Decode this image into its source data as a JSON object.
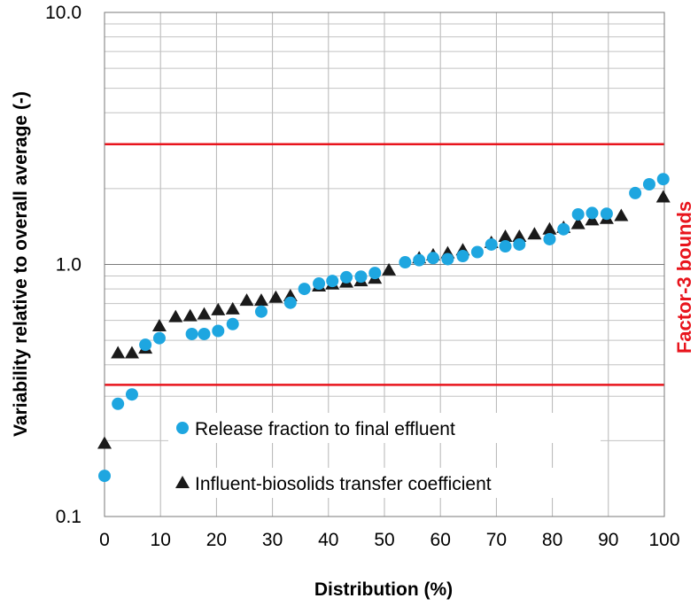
{
  "chart_data": {
    "type": "scatter",
    "xlabel": "Distribution (%)",
    "ylabel": "Variability relative to overall average (-)",
    "secondary_label": "Factor-3 bounds",
    "xlim": [
      0,
      100
    ],
    "ylim": [
      0.1,
      10
    ],
    "y_scale": "log",
    "x_ticks": [
      "0",
      "10",
      "20",
      "30",
      "40",
      "50",
      "60",
      "70",
      "80",
      "90",
      "100"
    ],
    "y_ticks": [
      "0.1",
      "1.0",
      "10.0"
    ],
    "grid": true,
    "legend_position": "bottom-center (inside plot)",
    "bounds": {
      "values": [
        0.333,
        3.0
      ],
      "color": "#e8141c"
    },
    "series": [
      {
        "name": "Release fraction to final effluent",
        "marker": "circle",
        "color": "#1ea6e0",
        "points": [
          [
            0,
            0.145
          ],
          [
            2.4,
            0.28
          ],
          [
            4.9,
            0.305
          ],
          [
            7.3,
            0.48
          ],
          [
            9.8,
            0.51
          ],
          [
            15.6,
            0.53
          ],
          [
            17.8,
            0.53
          ],
          [
            20.3,
            0.545
          ],
          [
            22.9,
            0.58
          ],
          [
            28.0,
            0.65
          ],
          [
            33.2,
            0.705
          ],
          [
            35.7,
            0.8
          ],
          [
            38.3,
            0.84
          ],
          [
            40.7,
            0.86
          ],
          [
            43.2,
            0.89
          ],
          [
            45.8,
            0.895
          ],
          [
            48.3,
            0.925
          ],
          [
            53.7,
            1.02
          ],
          [
            56.2,
            1.04
          ],
          [
            58.7,
            1.06
          ],
          [
            61.3,
            1.05
          ],
          [
            64.0,
            1.08
          ],
          [
            66.6,
            1.12
          ],
          [
            69.1,
            1.2
          ],
          [
            71.6,
            1.18
          ],
          [
            74.1,
            1.2
          ],
          [
            79.5,
            1.26
          ],
          [
            82.0,
            1.38
          ],
          [
            84.6,
            1.58
          ],
          [
            87.1,
            1.6
          ],
          [
            89.7,
            1.59
          ],
          [
            94.8,
            1.92
          ],
          [
            97.3,
            2.08
          ],
          [
            99.8,
            2.18
          ]
        ]
      },
      {
        "name": "Influent-biosolids transfer coefficient",
        "marker": "triangle",
        "color": "#1a1a1a",
        "points": [
          [
            0,
            0.195
          ],
          [
            2.4,
            0.445
          ],
          [
            4.9,
            0.445
          ],
          [
            7.3,
            0.465
          ],
          [
            9.8,
            0.57
          ],
          [
            12.7,
            0.62
          ],
          [
            15.3,
            0.625
          ],
          [
            17.8,
            0.635
          ],
          [
            20.3,
            0.66
          ],
          [
            22.9,
            0.665
          ],
          [
            25.4,
            0.72
          ],
          [
            28.0,
            0.72
          ],
          [
            30.6,
            0.74
          ],
          [
            33.2,
            0.75
          ],
          [
            38.3,
            0.82
          ],
          [
            40.7,
            0.835
          ],
          [
            43.2,
            0.85
          ],
          [
            45.8,
            0.86
          ],
          [
            48.3,
            0.88
          ],
          [
            50.8,
            0.95
          ],
          [
            56.2,
            1.06
          ],
          [
            58.7,
            1.09
          ],
          [
            61.3,
            1.11
          ],
          [
            64.0,
            1.14
          ],
          [
            69.1,
            1.22
          ],
          [
            71.6,
            1.29
          ],
          [
            74.1,
            1.29
          ],
          [
            76.8,
            1.32
          ],
          [
            79.5,
            1.38
          ],
          [
            82.0,
            1.4
          ],
          [
            84.6,
            1.45
          ],
          [
            87.1,
            1.5
          ],
          [
            89.7,
            1.52
          ],
          [
            92.3,
            1.56
          ],
          [
            99.8,
            1.85
          ]
        ]
      }
    ]
  }
}
